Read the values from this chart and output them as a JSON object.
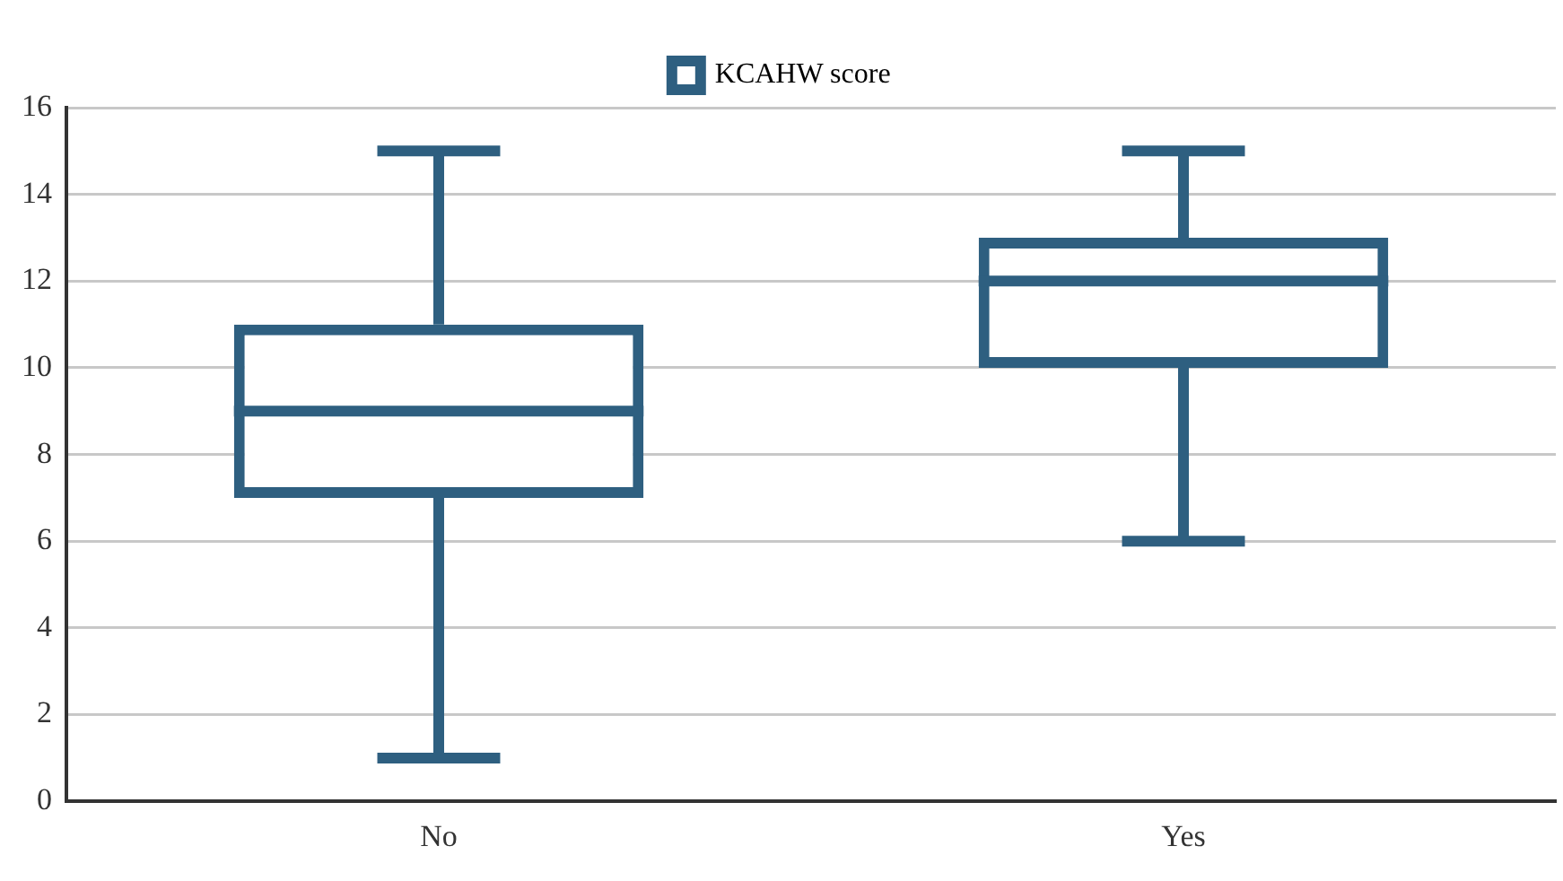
{
  "chart_data": {
    "type": "box",
    "categories": [
      "No",
      "Yes"
    ],
    "series": [
      {
        "name": "KCAHW score",
        "color": "#2e5f80",
        "boxes": [
          {
            "low": 1,
            "q1": 7,
            "median": 9,
            "q3": 11,
            "high": 15
          },
          {
            "low": 6,
            "q1": 10,
            "median": 12,
            "q3": 13,
            "high": 15
          }
        ]
      }
    ],
    "ylim": [
      0,
      16
    ],
    "yticks": [
      0,
      2,
      4,
      6,
      8,
      10,
      12,
      14,
      16
    ],
    "grid": "y",
    "legend": "top"
  }
}
